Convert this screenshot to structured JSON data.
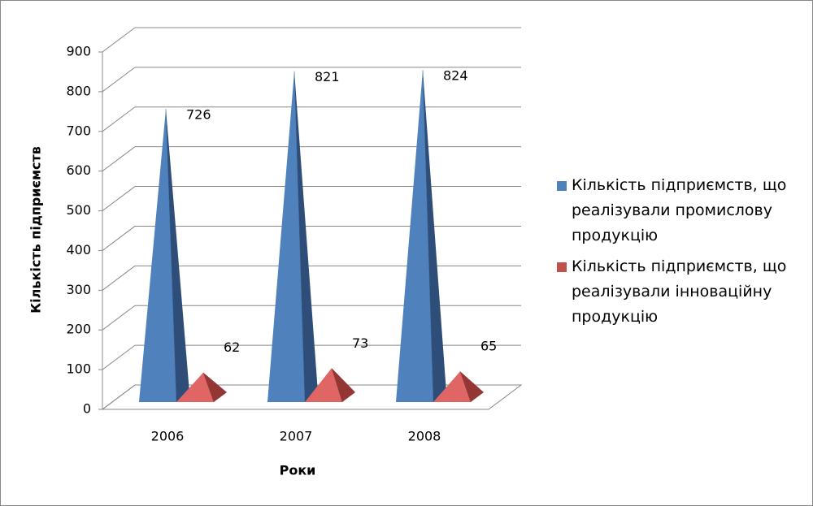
{
  "chart_data": {
    "type": "pyramid3d",
    "x_label": "Роки",
    "y_label": "Кількість підприємств",
    "categories": [
      "2006",
      "2007",
      "2008"
    ],
    "series": [
      {
        "name": "Кількість підприємств, що реалізували промислову продукцію",
        "color": "#4f81bd",
        "values": [
          726,
          821,
          824
        ]
      },
      {
        "name": "Кількість підприємств, що реалізували інноваційну продукцію",
        "color": "#c0504d",
        "values": [
          62,
          73,
          65
        ]
      }
    ],
    "ylim": [
      0,
      900
    ],
    "yticks": [
      0,
      100,
      200,
      300,
      400,
      500,
      600,
      700,
      800,
      900
    ],
    "grid": true,
    "legend": "right"
  }
}
